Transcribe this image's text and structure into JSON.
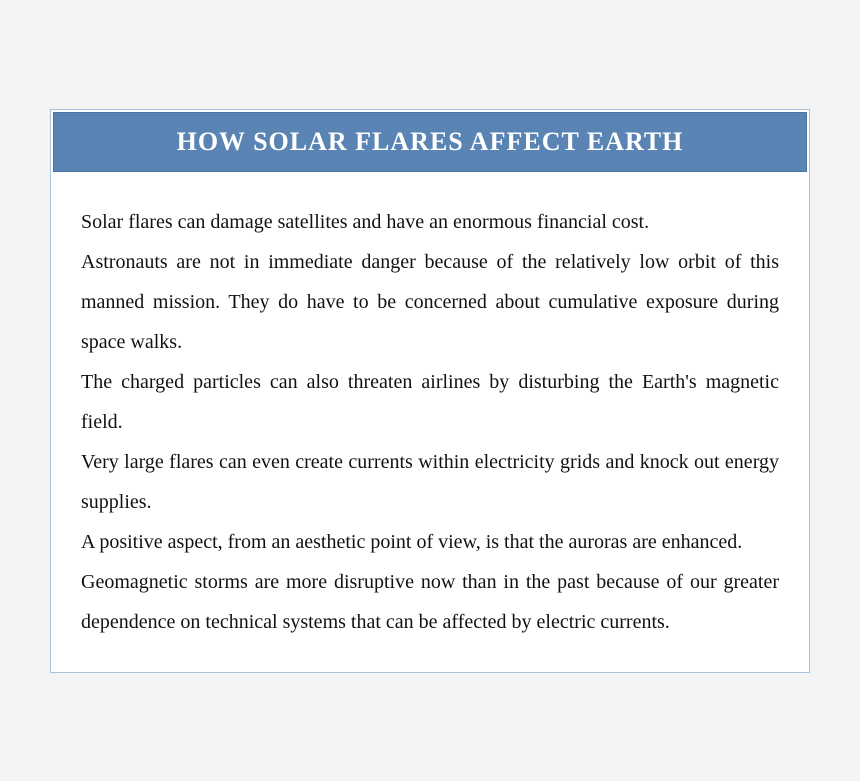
{
  "document": {
    "title": "HOW SOLAR FLARES AFFECT EARTH",
    "title_bg_color": "#5a84b3",
    "title_text_color": "#ffffff",
    "card_border_color": "#a9c3de",
    "page_bg_color": "#f4f4f4",
    "body_font_size": 20,
    "title_font_size": 26,
    "line_height": 2.0,
    "paragraphs": [
      "Solar flares can damage satellites and have an enormous financial cost.",
      "Astronauts are not in immediate danger because of the relatively low orbit of this manned mission. They do have to be concerned about cumulative exposure during space walks.",
      "The charged particles can also threaten airlines by disturbing the Earth's magnetic field.",
      "Very large flares can even create currents within electricity grids and knock out energy supplies.",
      "A positive aspect, from an aesthetic point of view, is that the auroras are enhanced.",
      "Geomagnetic storms are more disruptive now than in the past because of our greater dependence on technical systems that can be affected by electric currents."
    ]
  }
}
